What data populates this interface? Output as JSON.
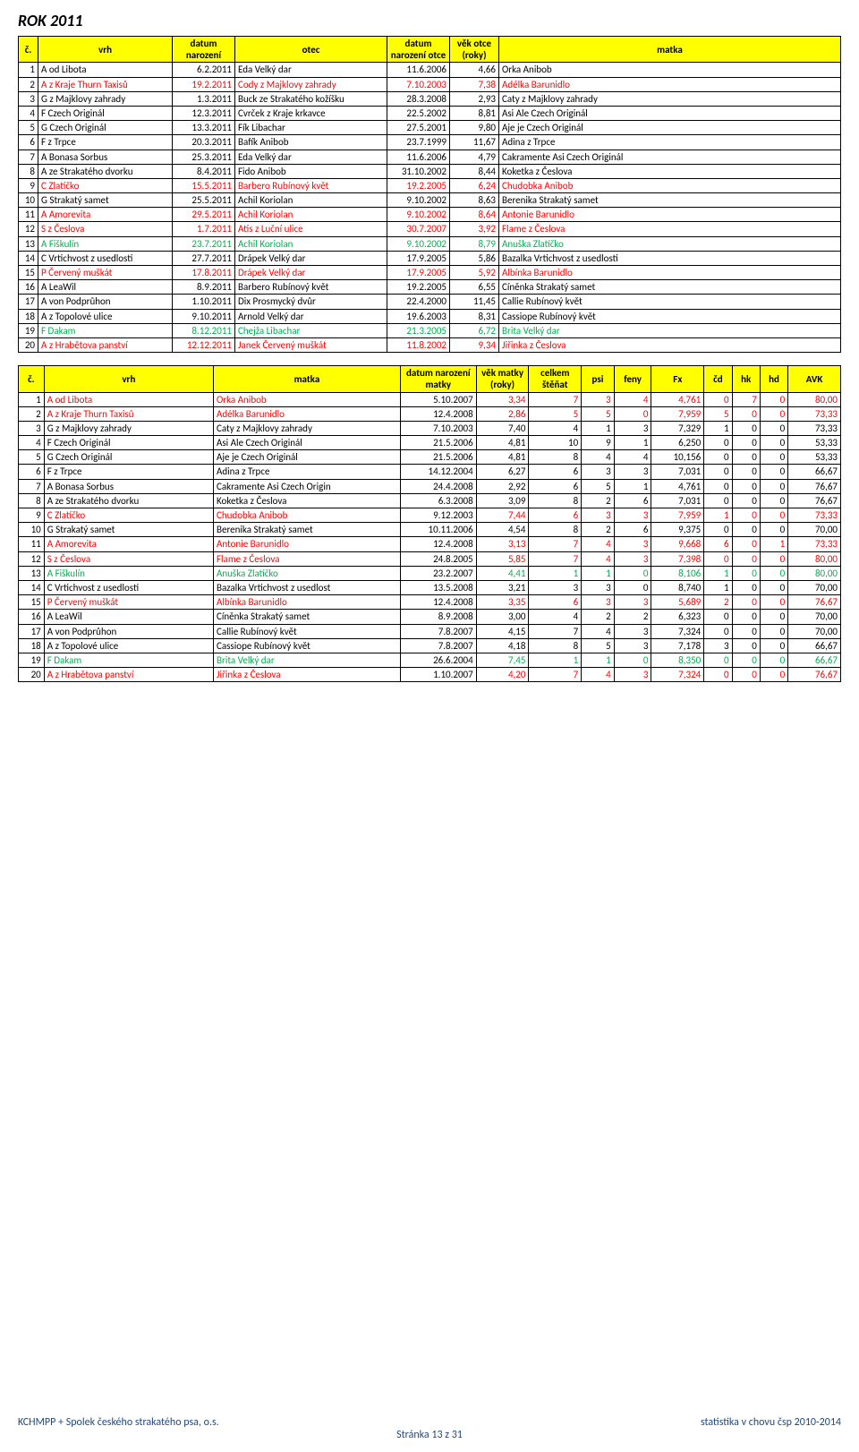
{
  "title": "ROK 2011",
  "table1": {
    "headers": [
      "č.",
      "vrh",
      "datum narození",
      "otec",
      "datum narození otce",
      "věk otce (roky)",
      "matka"
    ],
    "rows": [
      {
        "n": "1",
        "vrh": "A od Libota",
        "dn": "6.2.2011",
        "otec": "Eda Velký dar",
        "dno": "11.6.2006",
        "vek": "4,66",
        "matka": "Orka Anibob",
        "color": "#000"
      },
      {
        "n": "2",
        "vrh": "A z Kraje Thurn Taxisů",
        "dn": "19.2.2011",
        "otec": "Cody z Majklovy zahrady",
        "dno": "7.10.2003",
        "vek": "7,38",
        "matka": "Adélka Barunidlo",
        "color": "#ff0000"
      },
      {
        "n": "3",
        "vrh": "G z Majklovy zahrady",
        "dn": "1.3.2011",
        "otec": "Buck ze Strakatého kožíšku",
        "dno": "28.3.2008",
        "vek": "2,93",
        "matka": "Caty z Majklovy zahrady",
        "color": "#000"
      },
      {
        "n": "4",
        "vrh": "F Czech Originál",
        "dn": "12.3.2011",
        "otec": "Cvrček z Kraje krkavce",
        "dno": "22.5.2002",
        "vek": "8,81",
        "matka": "Asi Ale Czech Originál",
        "color": "#000"
      },
      {
        "n": "5",
        "vrh": "G Czech Originál",
        "dn": "13.3.2011",
        "otec": "Fík Libachar",
        "dno": "27.5.2001",
        "vek": "9,80",
        "matka": "Aje je Czech Originál",
        "color": "#000"
      },
      {
        "n": "6",
        "vrh": "F z Trpce",
        "dn": "20.3.2011",
        "otec": "Bafík Anibob",
        "dno": "23.7.1999",
        "vek": "11,67",
        "matka": "Adina z Trpce",
        "color": "#000"
      },
      {
        "n": "7",
        "vrh": "A Bonasa Sorbus",
        "dn": "25.3.2011",
        "otec": "Eda Velký dar",
        "dno": "11.6.2006",
        "vek": "4,79",
        "matka": "Cakramente Asi Czech Originál",
        "color": "#000"
      },
      {
        "n": "8",
        "vrh": "A ze Strakatého dvorku",
        "dn": "8.4.2011",
        "otec": "Fido Anibob",
        "dno": "31.10.2002",
        "vek": "8,44",
        "matka": "Koketka z Česlova",
        "color": "#000"
      },
      {
        "n": "9",
        "vrh": "C Zlatíčko",
        "dn": "15.5.2011",
        "otec": "Barbero Rubínový květ",
        "dno": "19.2.2005",
        "vek": "6,24",
        "matka": "Chudobka Anibob",
        "color": "#ff0000"
      },
      {
        "n": "10",
        "vrh": "G Strakatý samet",
        "dn": "25.5.2011",
        "otec": "Achil Koriolan",
        "dno": "9.10.2002",
        "vek": "8,63",
        "matka": "Berenika Strakatý samet",
        "color": "#000"
      },
      {
        "n": "11",
        "vrh": "A Amorevita",
        "dn": "29.5.2011",
        "otec": "Achil Koriolan",
        "dno": "9.10.2002",
        "vek": "8,64",
        "matka": "Antonie Barunidlo",
        "color": "#ff0000"
      },
      {
        "n": "12",
        "vrh": "S z Česlova",
        "dn": "1.7.2011",
        "otec": "Atis z Luční ulice",
        "dno": "30.7.2007",
        "vek": "3,92",
        "matka": "Flame z Česlova",
        "color": "#ff0000"
      },
      {
        "n": "13",
        "vrh": "A Fiškulín",
        "dn": "23.7.2011",
        "otec": "Achil Koriolan",
        "dno": "9.10.2002",
        "vek": "8,79",
        "matka": "Anuška Zlatíčko",
        "color": "#00b050"
      },
      {
        "n": "14",
        "vrh": "C Vrtichvost z usedlosti",
        "dn": "27.7.2011",
        "otec": "Drápek Velký dar",
        "dno": "17.9.2005",
        "vek": "5,86",
        "matka": "Bazalka Vrtichvost z usedlosti",
        "color": "#000"
      },
      {
        "n": "15",
        "vrh": "P Červený muškát",
        "dn": "17.8.2011",
        "otec": "Drápek Velký dar",
        "dno": "17.9.2005",
        "vek": "5,92",
        "matka": "Albínka Barunidlo",
        "color": "#ff0000"
      },
      {
        "n": "16",
        "vrh": "A LeaWil",
        "dn": "8.9.2011",
        "otec": "Barbero Rubínový květ",
        "dno": "19.2.2005",
        "vek": "6,55",
        "matka": "Cíněnka Strakatý samet",
        "color": "#000"
      },
      {
        "n": "17",
        "vrh": "A von Podprůhon",
        "dn": "1.10.2011",
        "otec": "Dix Prosmycký dvůr",
        "dno": "22.4.2000",
        "vek": "11,45",
        "matka": "Callie Rubínový květ",
        "color": "#000"
      },
      {
        "n": "18",
        "vrh": "A z Topolové ulice",
        "dn": "9.10.2011",
        "otec": "Arnold Velký dar",
        "dno": "19.6.2003",
        "vek": "8,31",
        "matka": "Cassiope Rubínový květ",
        "color": "#000"
      },
      {
        "n": "19",
        "vrh": "F Dakam",
        "dn": "8.12.2011",
        "otec": "Chejža Libachar",
        "dno": "21.3.2005",
        "vek": "6,72",
        "matka": "Brita Velký dar",
        "color": "#00b050"
      },
      {
        "n": "20",
        "vrh": "A z Hrabětova panství",
        "dn": "12.12.2011",
        "otec": "Janek Červený muškát",
        "dno": "11.8.2002",
        "vek": "9,34",
        "matka": "Jiřinka z Česlova",
        "color": "#ff0000"
      }
    ]
  },
  "table2": {
    "headers": [
      "č.",
      "vrh",
      "matka",
      "datum narození matky",
      "věk matky (roky)",
      "celkem štěňat",
      "psi",
      "feny",
      "Fx",
      "čd",
      "hk",
      "hd",
      "AVK"
    ],
    "rows": [
      {
        "n": "1",
        "vrh": "A od Libota",
        "matka": "Orka Anibob",
        "dnm": "5.10.2007",
        "vek": "3,34",
        "cel": "7",
        "psi": "3",
        "feny": "4",
        "fx": "4,761",
        "cd": "0",
        "hk": "7",
        "hd": "0",
        "avk": "80,00",
        "cVrh": "#ff0000",
        "cMat": "#ff0000",
        "cVek": "#ff0000",
        "cCel": "#ff0000",
        "cPsi": "#ff0000",
        "cFeny": "#ff0000",
        "cFx": "#ff0000",
        "cCd": "#ff0000",
        "cHk": "#ff0000",
        "cHd": "#ff0000",
        "cAvk": "#ff0000"
      },
      {
        "n": "2",
        "vrh": "A z Kraje Thurn Taxisů",
        "matka": "Adélka Barunidlo",
        "dnm": "12.4.2008",
        "vek": "2,86",
        "cel": "5",
        "psi": "5",
        "feny": "0",
        "fx": "7,959",
        "cd": "5",
        "hk": "0",
        "hd": "0",
        "avk": "73,33",
        "cVrh": "#ff0000",
        "cMat": "#ff0000",
        "cVek": "#ff0000",
        "cCel": "#ff0000",
        "cPsi": "#ff0000",
        "cFeny": "#ff0000",
        "cFx": "#ff0000",
        "cCd": "#ff0000",
        "cHk": "#ff0000",
        "cHd": "#ff0000",
        "cAvk": "#ff0000"
      },
      {
        "n": "3",
        "vrh": "G z Majklovy zahrady",
        "matka": "Caty z Majklovy zahrady",
        "dnm": "7.10.2003",
        "vek": "7,40",
        "cel": "4",
        "psi": "1",
        "feny": "3",
        "fx": "7,329",
        "cd": "1",
        "hk": "0",
        "hd": "0",
        "avk": "73,33",
        "cVrh": "#000",
        "cMat": "#000",
        "cVek": "#000",
        "cCel": "#000",
        "cPsi": "#000",
        "cFeny": "#000",
        "cFx": "#000",
        "cCd": "#000",
        "cHk": "#000",
        "cHd": "#000",
        "cAvk": "#000"
      },
      {
        "n": "4",
        "vrh": "F Czech Originál",
        "matka": "Asi Ale Czech Originál",
        "dnm": "21.5.2006",
        "vek": "4,81",
        "cel": "10",
        "psi": "9",
        "feny": "1",
        "fx": "6,250",
        "cd": "0",
        "hk": "0",
        "hd": "0",
        "avk": "53,33",
        "cVrh": "#000",
        "cMat": "#000",
        "cVek": "#000",
        "cCel": "#000",
        "cPsi": "#000",
        "cFeny": "#000",
        "cFx": "#000",
        "cCd": "#000",
        "cHk": "#000",
        "cHd": "#000",
        "cAvk": "#000"
      },
      {
        "n": "5",
        "vrh": "G Czech Originál",
        "matka": "Aje je Czech Originál",
        "dnm": "21.5.2006",
        "vek": "4,81",
        "cel": "8",
        "psi": "4",
        "feny": "4",
        "fx": "10,156",
        "cd": "0",
        "hk": "0",
        "hd": "0",
        "avk": "53,33",
        "cVrh": "#000",
        "cMat": "#000",
        "cVek": "#000",
        "cCel": "#000",
        "cPsi": "#000",
        "cFeny": "#000",
        "cFx": "#000",
        "cCd": "#000",
        "cHk": "#000",
        "cHd": "#000",
        "cAvk": "#000"
      },
      {
        "n": "6",
        "vrh": "F z Trpce",
        "matka": "Adina z Trpce",
        "dnm": "14.12.2004",
        "vek": "6,27",
        "cel": "6",
        "psi": "3",
        "feny": "3",
        "fx": "7,031",
        "cd": "0",
        "hk": "0",
        "hd": "0",
        "avk": "66,67",
        "cVrh": "#000",
        "cMat": "#000",
        "cVek": "#000",
        "cCel": "#000",
        "cPsi": "#000",
        "cFeny": "#000",
        "cFx": "#000",
        "cCd": "#000",
        "cHk": "#000",
        "cHd": "#000",
        "cAvk": "#000"
      },
      {
        "n": "7",
        "vrh": "A Bonasa Sorbus",
        "matka": "Cakramente Asi Czech Origin",
        "dnm": "24.4.2008",
        "vek": "2,92",
        "cel": "6",
        "psi": "5",
        "feny": "1",
        "fx": "4,761",
        "cd": "0",
        "hk": "0",
        "hd": "0",
        "avk": "76,67",
        "cVrh": "#000",
        "cMat": "#000",
        "cVek": "#000",
        "cCel": "#000",
        "cPsi": "#000",
        "cFeny": "#000",
        "cFx": "#000",
        "cCd": "#000",
        "cHk": "#000",
        "cHd": "#000",
        "cAvk": "#000"
      },
      {
        "n": "8",
        "vrh": "A ze Strakatého dvorku",
        "matka": "Koketka z Česlova",
        "dnm": "6.3.2008",
        "vek": "3,09",
        "cel": "8",
        "psi": "2",
        "feny": "6",
        "fx": "7,031",
        "cd": "0",
        "hk": "0",
        "hd": "0",
        "avk": "76,67",
        "cVrh": "#000",
        "cMat": "#000",
        "cVek": "#000",
        "cCel": "#000",
        "cPsi": "#000",
        "cFeny": "#000",
        "cFx": "#000",
        "cCd": "#000",
        "cHk": "#000",
        "cHd": "#000",
        "cAvk": "#000"
      },
      {
        "n": "9",
        "vrh": "C Zlatíčko",
        "matka": "Chudobka Anibob",
        "dnm": "9.12.2003",
        "vek": "7,44",
        "cel": "6",
        "psi": "3",
        "feny": "3",
        "fx": "7,959",
        "cd": "1",
        "hk": "0",
        "hd": "0",
        "avk": "73,33",
        "cVrh": "#ff0000",
        "cMat": "#ff0000",
        "cVek": "#ff0000",
        "cCel": "#ff0000",
        "cPsi": "#ff0000",
        "cFeny": "#ff0000",
        "cFx": "#ff0000",
        "cCd": "#ff0000",
        "cHk": "#ff0000",
        "cHd": "#ff0000",
        "cAvk": "#ff0000"
      },
      {
        "n": "10",
        "vrh": "G Strakatý samet",
        "matka": "Berenika Strakatý samet",
        "dnm": "10.11.2006",
        "vek": "4,54",
        "cel": "8",
        "psi": "2",
        "feny": "6",
        "fx": "9,375",
        "cd": "0",
        "hk": "0",
        "hd": "0",
        "avk": "70,00",
        "cVrh": "#000",
        "cMat": "#000",
        "cVek": "#000",
        "cCel": "#000",
        "cPsi": "#000",
        "cFeny": "#000",
        "cFx": "#000",
        "cCd": "#000",
        "cHk": "#000",
        "cHd": "#000",
        "cAvk": "#000"
      },
      {
        "n": "11",
        "vrh": "A Amorevita",
        "matka": "Antonie Barunidlo",
        "dnm": "12.4.2008",
        "vek": "3,13",
        "cel": "7",
        "psi": "4",
        "feny": "3",
        "fx": "9,668",
        "cd": "6",
        "hk": "0",
        "hd": "1",
        "avk": "73,33",
        "cVrh": "#ff0000",
        "cMat": "#ff0000",
        "cVek": "#ff0000",
        "cCel": "#ff0000",
        "cPsi": "#ff0000",
        "cFeny": "#ff0000",
        "cFx": "#ff0000",
        "cCd": "#ff0000",
        "cHk": "#ff0000",
        "cHd": "#ff0000",
        "cAvk": "#ff0000"
      },
      {
        "n": "12",
        "vrh": "S z Česlova",
        "matka": "Flame z Česlova",
        "dnm": "24.8.2005",
        "vek": "5,85",
        "cel": "7",
        "psi": "4",
        "feny": "3",
        "fx": "7,398",
        "cd": "0",
        "hk": "0",
        "hd": "0",
        "avk": "80,00",
        "cVrh": "#ff0000",
        "cMat": "#ff0000",
        "cVek": "#ff0000",
        "cCel": "#ff0000",
        "cPsi": "#ff0000",
        "cFeny": "#ff0000",
        "cFx": "#ff0000",
        "cCd": "#ff0000",
        "cHk": "#ff0000",
        "cHd": "#ff0000",
        "cAvk": "#ff0000"
      },
      {
        "n": "13",
        "vrh": "A Fiškulín",
        "matka": "Anuška Zlatíčko",
        "dnm": "23.2.2007",
        "vek": "4,41",
        "cel": "1",
        "psi": "1",
        "feny": "0",
        "fx": "8,106",
        "cd": "1",
        "hk": "0",
        "hd": "0",
        "avk": "80,00",
        "cVrh": "#00b050",
        "cMat": "#00b050",
        "cVek": "#00b050",
        "cCel": "#00b050",
        "cPsi": "#00b050",
        "cFeny": "#00b050",
        "cFx": "#00b050",
        "cCd": "#00b050",
        "cHk": "#00b050",
        "cHd": "#00b050",
        "cAvk": "#00b050"
      },
      {
        "n": "14",
        "vrh": "C Vrtichvost z usedlosti",
        "matka": "Bazalka Vrtichvost z usedlost",
        "dnm": "13.5.2008",
        "vek": "3,21",
        "cel": "3",
        "psi": "3",
        "feny": "0",
        "fx": "8,740",
        "cd": "1",
        "hk": "0",
        "hd": "0",
        "avk": "70,00",
        "cVrh": "#000",
        "cMat": "#000",
        "cVek": "#000",
        "cCel": "#000",
        "cPsi": "#000",
        "cFeny": "#000",
        "cFx": "#000",
        "cCd": "#000",
        "cHk": "#000",
        "cHd": "#000",
        "cAvk": "#000"
      },
      {
        "n": "15",
        "vrh": "P Červený muškát",
        "matka": "Albínka Barunidlo",
        "dnm": "12.4.2008",
        "vek": "3,35",
        "cel": "6",
        "psi": "3",
        "feny": "3",
        "fx": "5,689",
        "cd": "2",
        "hk": "0",
        "hd": "0",
        "avk": "76,67",
        "cVrh": "#ff0000",
        "cMat": "#ff0000",
        "cVek": "#ff0000",
        "cCel": "#ff0000",
        "cPsi": "#ff0000",
        "cFeny": "#ff0000",
        "cFx": "#ff0000",
        "cCd": "#ff0000",
        "cHk": "#ff0000",
        "cHd": "#ff0000",
        "cAvk": "#ff0000"
      },
      {
        "n": "16",
        "vrh": "A LeaWil",
        "matka": "Cíněnka Strakatý samet",
        "dnm": "8.9.2008",
        "vek": "3,00",
        "cel": "4",
        "psi": "2",
        "feny": "2",
        "fx": "6,323",
        "cd": "0",
        "hk": "0",
        "hd": "0",
        "avk": "70,00",
        "cVrh": "#000",
        "cMat": "#000",
        "cVek": "#000",
        "cCel": "#000",
        "cPsi": "#000",
        "cFeny": "#000",
        "cFx": "#000",
        "cCd": "#000",
        "cHk": "#000",
        "cHd": "#000",
        "cAvk": "#000"
      },
      {
        "n": "17",
        "vrh": "A von Podprůhon",
        "matka": "Callie Rubínový květ",
        "dnm": "7.8.2007",
        "vek": "4,15",
        "cel": "7",
        "psi": "4",
        "feny": "3",
        "fx": "7,324",
        "cd": "0",
        "hk": "0",
        "hd": "0",
        "avk": "70,00",
        "cVrh": "#000",
        "cMat": "#000",
        "cVek": "#000",
        "cCel": "#000",
        "cPsi": "#000",
        "cFeny": "#000",
        "cFx": "#000",
        "cCd": "#000",
        "cHk": "#000",
        "cHd": "#000",
        "cAvk": "#000"
      },
      {
        "n": "18",
        "vrh": "A z Topolové ulice",
        "matka": "Cassiope Rubínový květ",
        "dnm": "7.8.2007",
        "vek": "4,18",
        "cel": "8",
        "psi": "5",
        "feny": "3",
        "fx": "7,178",
        "cd": "3",
        "hk": "0",
        "hd": "0",
        "avk": "66,67",
        "cVrh": "#000",
        "cMat": "#000",
        "cVek": "#000",
        "cCel": "#000",
        "cPsi": "#000",
        "cFeny": "#000",
        "cFx": "#000",
        "cCd": "#000",
        "cHk": "#000",
        "cHd": "#000",
        "cAvk": "#000"
      },
      {
        "n": "19",
        "vrh": "F Dakam",
        "matka": "Brita Velký dar",
        "dnm": "26.6.2004",
        "vek": "7,45",
        "cel": "1",
        "psi": "1",
        "feny": "0",
        "fx": "8,350",
        "cd": "0",
        "hk": "0",
        "hd": "0",
        "avk": "66,67",
        "cVrh": "#00b050",
        "cMat": "#00b050",
        "cVek": "#00b050",
        "cCel": "#00b050",
        "cPsi": "#00b050",
        "cFeny": "#00b050",
        "cFx": "#00b050",
        "cCd": "#00b050",
        "cHk": "#00b050",
        "cHd": "#00b050",
        "cAvk": "#00b050"
      },
      {
        "n": "20",
        "vrh": "A z Hrabětova panství",
        "matka": "Jiřinka z Česlova",
        "dnm": "1.10.2007",
        "vek": "4,20",
        "cel": "7",
        "psi": "4",
        "feny": "3",
        "fx": "7,324",
        "cd": "0",
        "hk": "0",
        "hd": "0",
        "avk": "76,67",
        "cVrh": "#ff0000",
        "cMat": "#ff0000",
        "cVek": "#ff0000",
        "cCel": "#ff0000",
        "cPsi": "#ff0000",
        "cFeny": "#ff0000",
        "cFx": "#ff0000",
        "cCd": "#ff0000",
        "cHk": "#ff0000",
        "cHd": "#ff0000",
        "cAvk": "#ff0000"
      }
    ]
  },
  "footer": {
    "left": "KCHMPP + Spolek českého strakatého psa, o.s.",
    "center": "Stránka 13 z 31",
    "right": "statistika v chovu čsp 2010-2014"
  },
  "colors": {
    "headerBg": "#ffff00",
    "red": "#ff0000",
    "green": "#00b050",
    "footer": "#1f497d"
  }
}
